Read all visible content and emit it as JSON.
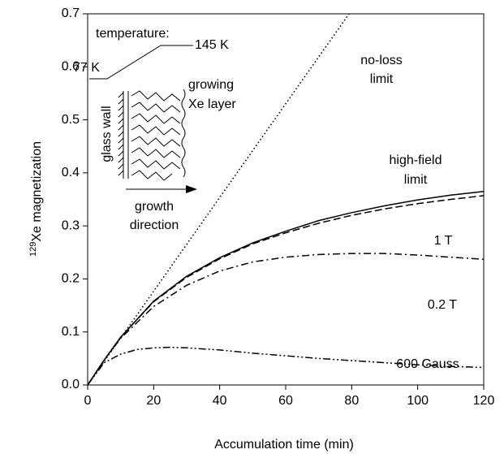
{
  "chart_data": {
    "type": "line",
    "ylabel_sup": "129",
    "ylabel": "Xe magnetization",
    "xlabel": "Accumulation time (min)",
    "xlim": [
      0,
      120
    ],
    "xticks": [
      0,
      20,
      40,
      60,
      80,
      100,
      120
    ],
    "ylim": [
      0,
      0.7
    ],
    "yticks": [
      {
        "value": 0,
        "label": "0.0"
      },
      0.1,
      0.2,
      0.3,
      0.4,
      0.5,
      0.6,
      0.7
    ],
    "color": "#000000",
    "series": [
      {
        "linestyle": "dotted",
        "x": [
          0,
          79.2
        ],
        "values": [
          0,
          0.7
        ]
      },
      {
        "linestyle": "solid",
        "x": [
          0,
          5,
          10,
          20,
          30,
          40,
          50,
          60,
          70,
          80,
          90,
          100,
          110,
          120
        ],
        "values": [
          0,
          0.047,
          0.09,
          0.158,
          0.205,
          0.24,
          0.268,
          0.29,
          0.31,
          0.325,
          0.338,
          0.349,
          0.358,
          0.365
        ]
      },
      {
        "linestyle": "dashed",
        "x": [
          0,
          5,
          10,
          20,
          30,
          40,
          50,
          60,
          70,
          80,
          90,
          100,
          110,
          120
        ],
        "values": [
          0,
          0.047,
          0.09,
          0.157,
          0.203,
          0.238,
          0.266,
          0.287,
          0.305,
          0.32,
          0.332,
          0.342,
          0.35,
          0.357
        ]
      },
      {
        "linestyle": "dashdot",
        "x": [
          0,
          5,
          10,
          20,
          30,
          40,
          50,
          60,
          70,
          80,
          90,
          100,
          110,
          120
        ],
        "values": [
          0,
          0.047,
          0.088,
          0.148,
          0.188,
          0.215,
          0.232,
          0.241,
          0.246,
          0.248,
          0.248,
          0.245,
          0.241,
          0.237
        ]
      },
      {
        "linestyle": "dashdotdot",
        "x": [
          0,
          5,
          10,
          15,
          20,
          25,
          30,
          40,
          50,
          60,
          70,
          80,
          90,
          100,
          110,
          120
        ],
        "values": [
          0,
          0.042,
          0.058,
          0.067,
          0.07,
          0.071,
          0.07,
          0.066,
          0.06,
          0.055,
          0.05,
          0.046,
          0.042,
          0.038,
          0.035,
          0.033
        ]
      }
    ],
    "annotations": [
      "no-loss",
      "limit",
      "high-field",
      "limit",
      "1 T",
      "0.2 T",
      "600 Gauss"
    ],
    "inset": {
      "temperature": "temperature:",
      "low": "77 K",
      "high": "145 K",
      "wall": "glass wall",
      "layer1": "growing",
      "layer2": "Xe layer",
      "dir1": "growth",
      "dir2": "direction"
    }
  }
}
